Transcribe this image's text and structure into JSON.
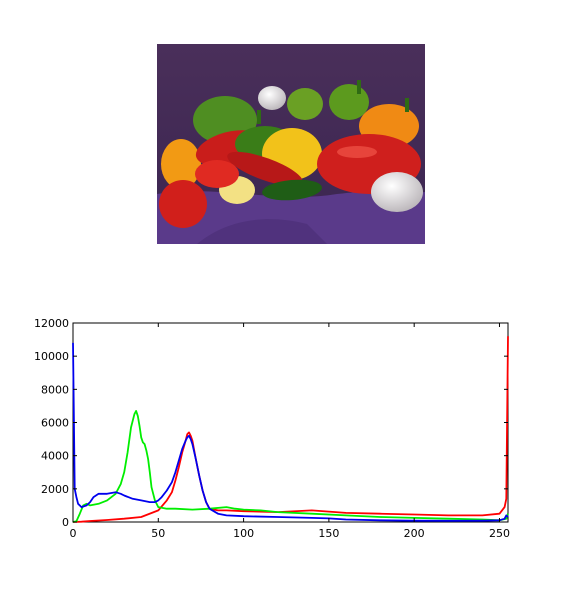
{
  "image": {
    "subject": "peppers-photo",
    "colors": {
      "backdrop": "#4a2f5a",
      "cloth": "#5a3a8a",
      "red": "#c8201c",
      "green": "#3c8a1c",
      "yellow": "#f2c21a",
      "orange": "#f08a14",
      "garlic": "#ecebea"
    }
  },
  "chart_data": {
    "type": "line",
    "title": "",
    "xlabel": "",
    "ylabel": "",
    "xlim": [
      0,
      255
    ],
    "ylim": [
      0,
      12000
    ],
    "x_ticks": [
      0,
      50,
      100,
      150,
      200,
      250
    ],
    "y_ticks": [
      0,
      2000,
      4000,
      6000,
      8000,
      10000,
      12000
    ],
    "grid": false,
    "legend": "none",
    "series": [
      {
        "color": "#ff0000",
        "x": [
          0,
          5,
          10,
          20,
          30,
          40,
          50,
          55,
          58,
          60,
          62,
          64,
          66,
          67,
          68,
          69,
          70,
          72,
          74,
          76,
          78,
          80,
          85,
          90,
          100,
          120,
          140,
          160,
          180,
          200,
          220,
          240,
          250,
          253,
          254,
          255
        ],
        "y": [
          0,
          20,
          60,
          120,
          200,
          300,
          700,
          1300,
          1800,
          2500,
          3300,
          4200,
          4900,
          5300,
          5400,
          5200,
          4900,
          3800,
          2800,
          1900,
          1200,
          800,
          700,
          700,
          650,
          600,
          700,
          550,
          500,
          450,
          400,
          400,
          500,
          900,
          1400,
          11200
        ]
      },
      {
        "color": "#00ee00",
        "x": [
          0,
          2,
          4,
          6,
          8,
          10,
          15,
          20,
          25,
          28,
          30,
          32,
          34,
          36,
          37,
          38,
          39,
          40,
          41,
          42,
          43,
          44,
          45,
          46,
          48,
          50,
          55,
          60,
          70,
          80,
          90,
          95,
          100,
          110,
          120,
          140,
          160,
          180,
          200,
          220,
          240,
          250,
          254,
          255
        ],
        "y": [
          0,
          50,
          500,
          1000,
          1100,
          1000,
          1100,
          1300,
          1700,
          2300,
          3000,
          4200,
          5700,
          6500,
          6700,
          6400,
          5800,
          5100,
          4800,
          4700,
          4300,
          3800,
          3000,
          2100,
          1300,
          900,
          800,
          800,
          750,
          800,
          900,
          800,
          750,
          700,
          600,
          500,
          400,
          300,
          250,
          200,
          150,
          100,
          200,
          500
        ]
      },
      {
        "color": "#0000ee",
        "x": [
          0,
          1,
          2,
          3,
          5,
          8,
          10,
          12,
          15,
          20,
          25,
          28,
          30,
          35,
          40,
          45,
          48,
          50,
          52,
          55,
          58,
          60,
          62,
          64,
          66,
          67,
          68,
          69,
          70,
          72,
          74,
          76,
          78,
          80,
          85,
          90,
          100,
          120,
          140,
          150,
          160,
          180,
          200,
          220,
          240,
          250,
          253,
          254,
          255
        ],
        "y": [
          10800,
          2000,
          1500,
          1100,
          900,
          1000,
          1200,
          1500,
          1700,
          1700,
          1800,
          1700,
          1600,
          1400,
          1300,
          1200,
          1200,
          1300,
          1500,
          1900,
          2400,
          3000,
          3700,
          4400,
          4900,
          5100,
          5200,
          5000,
          4700,
          3800,
          2800,
          1900,
          1200,
          800,
          500,
          400,
          350,
          300,
          250,
          220,
          150,
          100,
          80,
          70,
          80,
          100,
          200,
          400,
          300
        ]
      }
    ]
  }
}
